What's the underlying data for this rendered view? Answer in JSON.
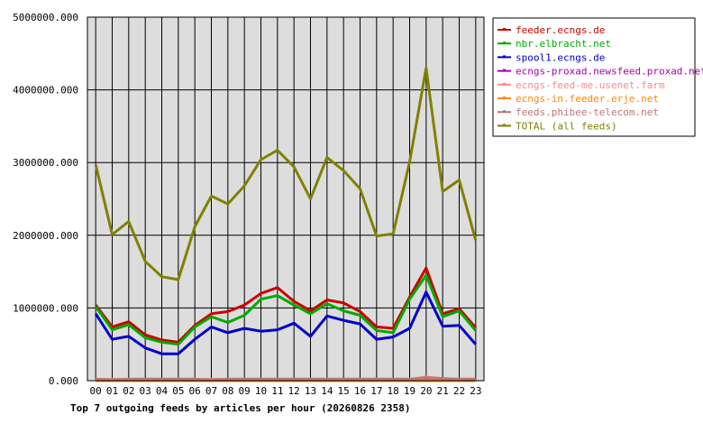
{
  "chart_data": {
    "type": "line",
    "title": "Top 7 outgoing feeds by articles per hour (20260826 2358)",
    "xlabel": "",
    "ylabel": "",
    "categories": [
      "00",
      "01",
      "02",
      "03",
      "04",
      "05",
      "06",
      "07",
      "08",
      "09",
      "10",
      "11",
      "12",
      "13",
      "14",
      "15",
      "16",
      "17",
      "18",
      "19",
      "20",
      "21",
      "22",
      "23"
    ],
    "ylim": [
      0,
      5000000
    ],
    "y_ticks": [
      "0.000",
      "1000000.000",
      "2000000.000",
      "3000000.000",
      "4000000.000",
      "5000000.000"
    ],
    "grid": true,
    "legend_position": "right",
    "series": [
      {
        "name": "feeder.ecngs.de",
        "color": "#cc0000",
        "values": [
          1040000,
          740000,
          810000,
          630000,
          560000,
          530000,
          760000,
          920000,
          950000,
          1040000,
          1200000,
          1280000,
          1090000,
          960000,
          1110000,
          1070000,
          950000,
          740000,
          720000,
          1150000,
          1550000,
          920000,
          990000,
          730000
        ]
      },
      {
        "name": "nbr.elbracht.net",
        "color": "#00aa00",
        "values": [
          1020000,
          700000,
          770000,
          590000,
          530000,
          500000,
          740000,
          880000,
          800000,
          900000,
          1120000,
          1170000,
          1040000,
          920000,
          1060000,
          960000,
          900000,
          690000,
          660000,
          1120000,
          1450000,
          880000,
          960000,
          690000
        ]
      },
      {
        "name": "spool1.ecngs.de",
        "color": "#0000cc",
        "values": [
          920000,
          570000,
          610000,
          450000,
          370000,
          370000,
          570000,
          740000,
          660000,
          720000,
          680000,
          700000,
          790000,
          610000,
          890000,
          830000,
          780000,
          570000,
          600000,
          720000,
          1220000,
          750000,
          760000,
          500000
        ]
      },
      {
        "name": "ecngs-proxad.newsfeed.proxad.net",
        "color": "#aa00aa",
        "values": [
          20000,
          0,
          20000,
          20000,
          20000,
          20000,
          20000,
          0,
          20000,
          20000,
          20000,
          20000,
          20000,
          20000,
          20000,
          20000,
          20000,
          20000,
          20000,
          20000,
          20000,
          20000,
          20000,
          20000
        ]
      },
      {
        "name": "ecngs-feed-me.usenet.farm",
        "color": "#ff8888",
        "values": [
          20000,
          20000,
          20000,
          20000,
          20000,
          20000,
          20000,
          20000,
          20000,
          20000,
          20000,
          20000,
          20000,
          20000,
          20000,
          20000,
          20000,
          20000,
          20000,
          20000,
          50000,
          30000,
          20000,
          20000
        ]
      },
      {
        "name": "ecngs-in.feeder.erje.net",
        "color": "#ff8800",
        "values": [
          0,
          0,
          0,
          0,
          0,
          0,
          0,
          0,
          0,
          0,
          0,
          0,
          0,
          0,
          0,
          0,
          0,
          0,
          0,
          0,
          0,
          0,
          0,
          0
        ]
      },
      {
        "name": "feeds.phibee-telecom.net",
        "color": "#bb7777",
        "values": [
          20000,
          10000,
          20000,
          20000,
          20000,
          20000,
          20000,
          10000,
          20000,
          20000,
          20000,
          20000,
          20000,
          20000,
          20000,
          20000,
          20000,
          20000,
          20000,
          20000,
          40000,
          30000,
          20000,
          20000
        ]
      },
      {
        "name": "TOTAL (all feeds)",
        "color": "#808000",
        "values": [
          2970000,
          2010000,
          2190000,
          1640000,
          1430000,
          1390000,
          2120000,
          2540000,
          2430000,
          2680000,
          3040000,
          3170000,
          2940000,
          2500000,
          3070000,
          2890000,
          2640000,
          1990000,
          2020000,
          3010000,
          4300000,
          2600000,
          2760000,
          1930000
        ]
      }
    ]
  }
}
